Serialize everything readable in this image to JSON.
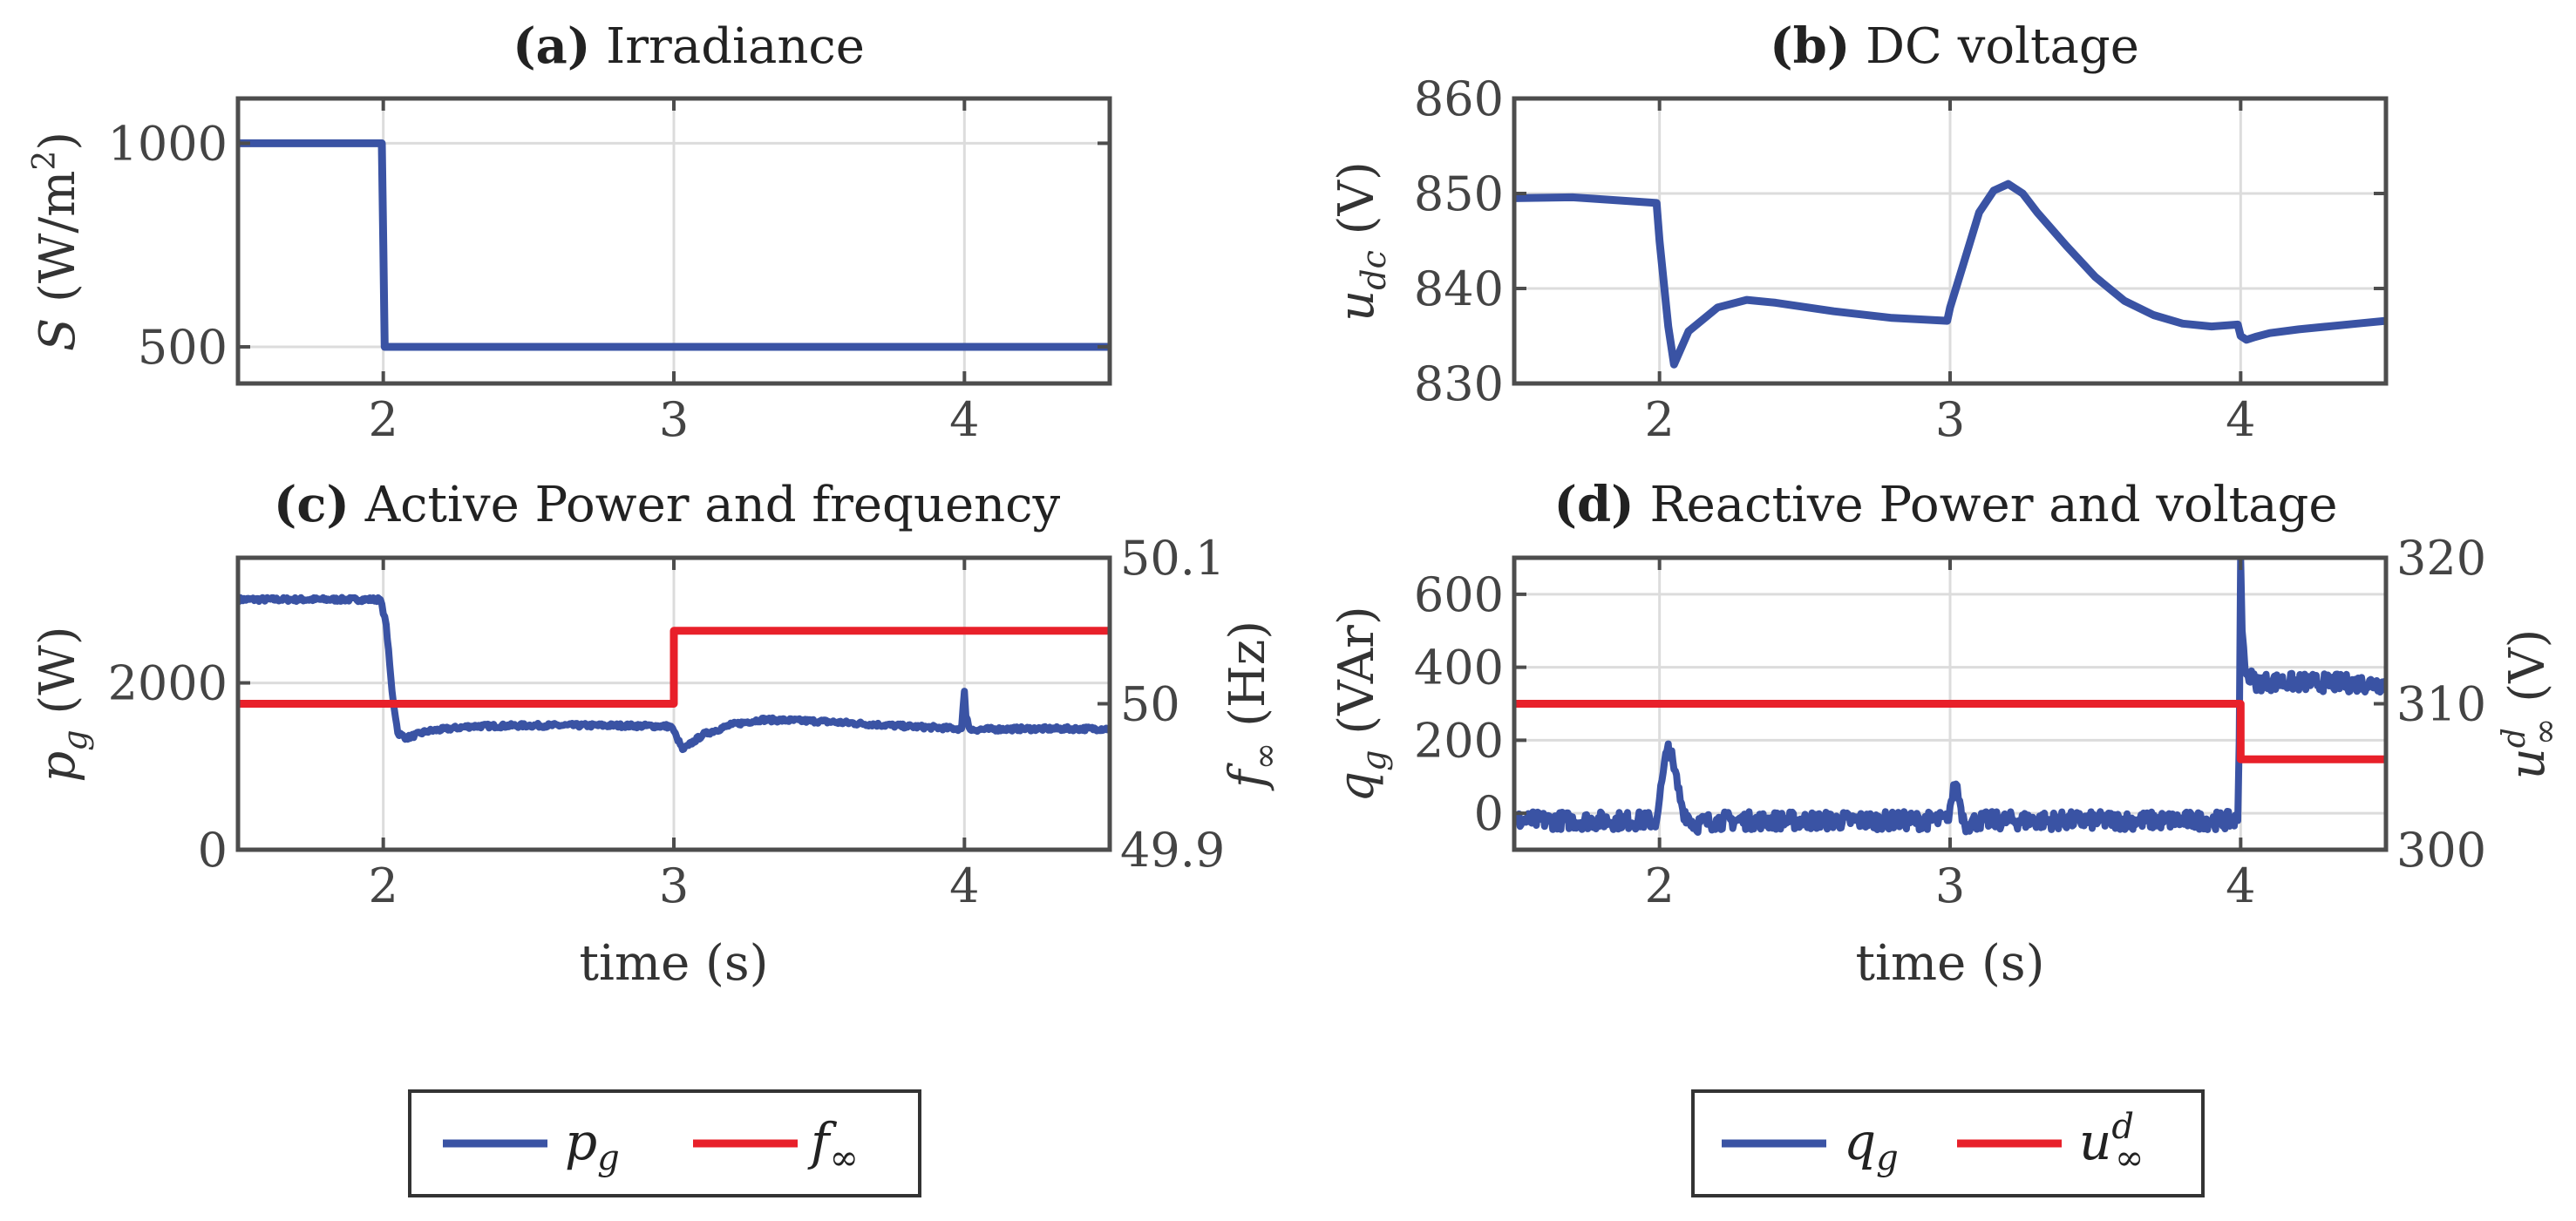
{
  "chart_data": [
    {
      "id": "a",
      "type": "line",
      "title_prefix": "(a)",
      "title": "Irradiance",
      "xlabel": "",
      "ylabel": "S (W/m²)",
      "xlim": [
        1.5,
        4.5
      ],
      "ylim": [
        410,
        1110
      ],
      "xticks": [
        2,
        3,
        4
      ],
      "yticks": [
        500,
        1000
      ],
      "grid": true,
      "series": [
        {
          "name": "S",
          "color": "#3a53a4",
          "x": [
            1.5,
            1.995,
            2.0,
            2.005,
            4.5
          ],
          "y": [
            1000,
            1000,
            750,
            500,
            500
          ]
        }
      ]
    },
    {
      "id": "b",
      "type": "line",
      "title_prefix": "(b)",
      "title": "DC voltage",
      "xlabel": "",
      "ylabel": "u_dc (V)",
      "xlim": [
        1.5,
        4.5
      ],
      "ylim": [
        830,
        860
      ],
      "xticks": [
        2,
        3,
        4
      ],
      "yticks": [
        830,
        840,
        850,
        860
      ],
      "grid": true,
      "series": [
        {
          "name": "u_dc",
          "color": "#3a53a4",
          "x": [
            1.5,
            1.7,
            1.99,
            2.0,
            2.03,
            2.05,
            2.1,
            2.2,
            2.3,
            2.4,
            2.6,
            2.8,
            2.99,
            3.0,
            3.05,
            3.1,
            3.15,
            3.2,
            3.25,
            3.3,
            3.4,
            3.5,
            3.6,
            3.7,
            3.8,
            3.9,
            3.99,
            4.0,
            4.02,
            4.05,
            4.1,
            4.2,
            4.3,
            4.4,
            4.5
          ],
          "y": [
            849.5,
            849.6,
            849.0,
            845.0,
            836.0,
            832.0,
            835.5,
            838.0,
            838.8,
            838.5,
            837.6,
            836.9,
            836.6,
            838.0,
            843.0,
            848.0,
            850.3,
            851.0,
            850.0,
            848.0,
            844.5,
            841.2,
            838.7,
            837.2,
            836.3,
            836.0,
            836.2,
            835.0,
            834.6,
            834.9,
            835.3,
            835.7,
            836.0,
            836.3,
            836.6
          ]
        }
      ]
    },
    {
      "id": "c",
      "type": "line",
      "title_prefix": "(c)",
      "title": "Active Power and frequency",
      "xlabel": "time (s)",
      "ylabel": "p_g (W)",
      "ylabel_right": "f_∞ (Hz)",
      "xlim": [
        1.5,
        4.5
      ],
      "ylim": [
        0,
        3500
      ],
      "ylim_right": [
        49.9,
        50.1
      ],
      "xticks": [
        2,
        3,
        4
      ],
      "yticks": [
        0,
        2000
      ],
      "yticks_right": [
        49.9,
        50,
        50.1
      ],
      "yticklabels_right": [
        "49.9",
        "50",
        "50.1"
      ],
      "grid": true,
      "series": [
        {
          "name": "p_g",
          "color": "#3a53a4",
          "axis": "left",
          "noise": 25,
          "x": [
            1.5,
            1.99,
            2.01,
            2.03,
            2.05,
            2.08,
            2.15,
            2.3,
            2.5,
            2.8,
            2.99,
            3.01,
            3.03,
            3.05,
            3.1,
            3.2,
            3.3,
            3.5,
            3.8,
            3.99,
            3.995,
            4.0,
            4.005,
            4.02,
            4.2,
            4.5
          ],
          "y": [
            3000,
            3000,
            2700,
            1900,
            1400,
            1340,
            1420,
            1480,
            1490,
            1490,
            1480,
            1350,
            1200,
            1250,
            1380,
            1500,
            1560,
            1540,
            1480,
            1450,
            1700,
            1900,
            1600,
            1440,
            1450,
            1450
          ]
        },
        {
          "name": "f_∞",
          "color": "#e8202a",
          "axis": "right",
          "x": [
            1.5,
            3.0,
            3.0,
            4.5
          ],
          "y": [
            50.0,
            50.0,
            50.05,
            50.05
          ]
        }
      ]
    },
    {
      "id": "d",
      "type": "line",
      "title_prefix": "(d)",
      "title": "Reactive Power and voltage",
      "xlabel": "time (s)",
      "ylabel": "q_g (VAr)",
      "ylabel_right": "u^d_∞ (V)",
      "xlim": [
        1.5,
        4.5
      ],
      "ylim": [
        -100,
        700
      ],
      "ylim_right": [
        300,
        320
      ],
      "xticks": [
        2,
        3,
        4
      ],
      "yticks": [
        0,
        200,
        400,
        600
      ],
      "yticks_right": [
        300,
        310,
        320
      ],
      "yticklabels_right": [
        "300",
        "310",
        "320"
      ],
      "grid": true,
      "series": [
        {
          "name": "q_g",
          "color": "#3a53a4",
          "axis": "left",
          "noise": 25,
          "x": [
            1.5,
            1.99,
            2.0,
            2.03,
            2.05,
            2.08,
            2.12,
            2.2,
            2.99,
            3.0,
            3.02,
            3.05,
            3.1,
            3.99,
            3.995,
            4.0,
            4.005,
            4.02,
            4.05,
            4.1,
            4.5
          ],
          "y": [
            -20,
            -20,
            40,
            190,
            120,
            10,
            -30,
            -20,
            -20,
            20,
            80,
            -30,
            -20,
            -20,
            200,
            700,
            500,
            380,
            360,
            360,
            355
          ]
        },
        {
          "name": "u^d_∞",
          "color": "#e8202a",
          "axis": "right",
          "x": [
            1.5,
            4.0,
            4.0,
            4.5
          ],
          "y": [
            310.0,
            310.0,
            306.2,
            306.2
          ]
        }
      ]
    }
  ],
  "legends": {
    "left": [
      {
        "label": "p_g",
        "color": "#3a53a4"
      },
      {
        "label": "f_∞",
        "color": "#e8202a"
      }
    ],
    "right": [
      {
        "label": "q_g",
        "color": "#3a53a4"
      },
      {
        "label": "u^d_∞",
        "color": "#e8202a"
      }
    ]
  }
}
